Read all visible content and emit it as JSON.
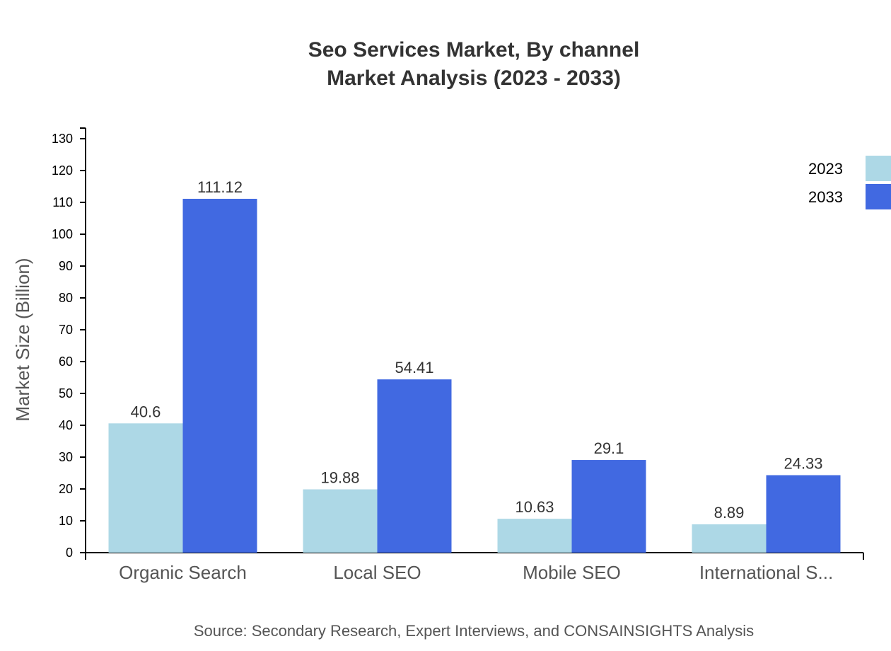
{
  "chart_data": {
    "type": "bar",
    "title": "Seo Services Market, By channel",
    "subtitle": "Market Analysis (2023 - 2033)",
    "xlabel": "",
    "ylabel": "Market Size (Billion)",
    "ylim": [
      0,
      130
    ],
    "yticks": [
      0,
      10,
      20,
      30,
      40,
      50,
      60,
      70,
      80,
      90,
      100,
      110,
      120,
      130
    ],
    "categories": [
      "Organic Search",
      "Local SEO",
      "Mobile SEO",
      "International S..."
    ],
    "series": [
      {
        "name": "2023",
        "color": "#add8e6",
        "values": [
          40.6,
          19.88,
          10.63,
          8.89
        ]
      },
      {
        "name": "2033",
        "color": "#4169e1",
        "values": [
          111.12,
          54.41,
          29.1,
          24.33
        ]
      }
    ],
    "legend_position": "top-right",
    "grid": false,
    "source": "Source: Secondary Research, Expert Interviews, and CONSAINSIGHTS Analysis"
  }
}
